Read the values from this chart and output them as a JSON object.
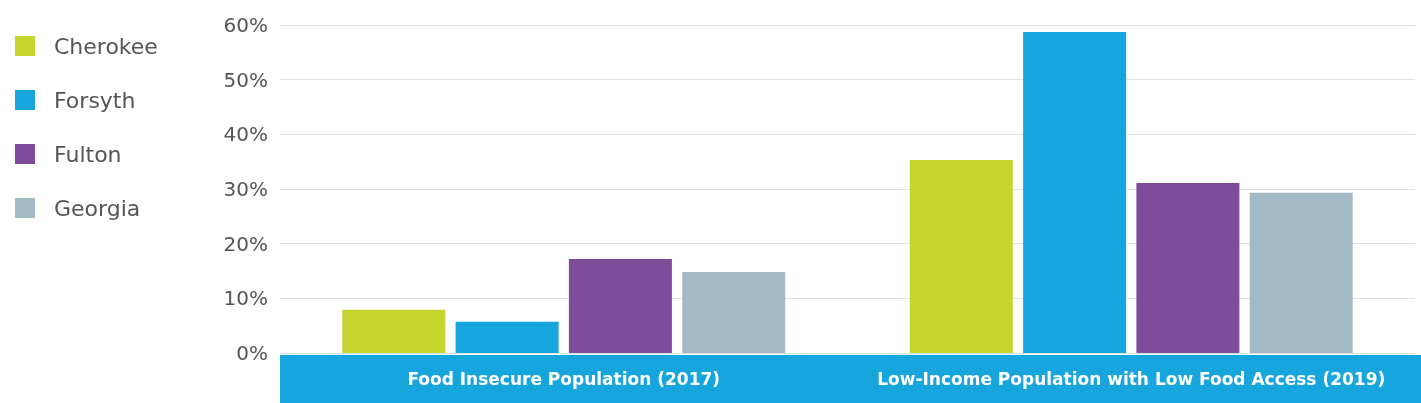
{
  "chart_data": {
    "type": "bar",
    "categories": [
      "Food Insecure Population (2017)",
      "Low-Income Population with Low Food Access (2019)"
    ],
    "series": [
      {
        "name": "Cherokee",
        "color": "#c4d52e",
        "values": [
          7.9,
          35.3
        ]
      },
      {
        "name": "Forsyth",
        "color": "#17a5de",
        "values": [
          5.7,
          58.7
        ]
      },
      {
        "name": "Fulton",
        "color": "#7f4b9b",
        "values": [
          17.2,
          31.1
        ]
      },
      {
        "name": "Georgia",
        "color": "#a4b9c6",
        "values": [
          14.8,
          29.3
        ]
      }
    ],
    "ylim": [
      0,
      60
    ],
    "yticks": [
      {
        "value": 0,
        "label": "0%"
      },
      {
        "value": 10,
        "label": "10%"
      },
      {
        "value": 20,
        "label": "20%"
      },
      {
        "value": 30,
        "label": "30%"
      },
      {
        "value": 40,
        "label": "40%"
      },
      {
        "value": 50,
        "label": "50%"
      },
      {
        "value": 60,
        "label": "60%"
      }
    ],
    "grid": "y",
    "legend": "left"
  }
}
